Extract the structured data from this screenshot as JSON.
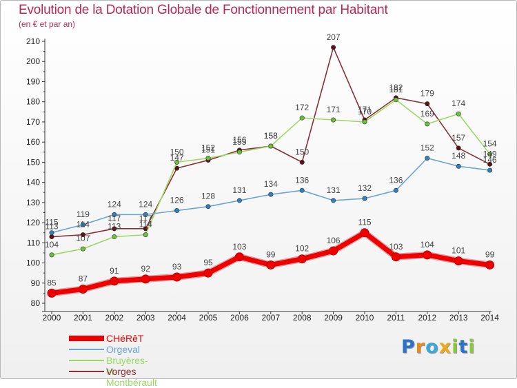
{
  "header": {
    "title": "Evolution de la Dotation Globale de Fonctionnement par Habitant",
    "subtitle": "(en € et par an)"
  },
  "logo": {
    "text": "Proxiti",
    "letters": [
      {
        "char": "P",
        "color": "#2a73c9"
      },
      {
        "char": "r",
        "color": "#e58a1c"
      },
      {
        "char": "o",
        "color": "#3aa7df"
      },
      {
        "char": "x",
        "color": "#f0a81a"
      },
      {
        "char": "i",
        "color": "#8cc63f"
      },
      {
        "char": "t",
        "color": "#2a73c9"
      },
      {
        "char": "i",
        "color": "#8cc63f"
      }
    ]
  },
  "chart_data": {
    "type": "line",
    "title": "Evolution de la Dotation Globale de Fonctionnement par Habitant",
    "subtitle": "(en € et par an)",
    "xlabel": "",
    "ylabel": "",
    "ylim": [
      80,
      210
    ],
    "ytick_step": 10,
    "grid": false,
    "legend_position": "bottom-left",
    "x": [
      "2000",
      "2001",
      "2002",
      "2003",
      "2004",
      "2005",
      "2006",
      "2007",
      "2008",
      "2009",
      "2010",
      "2011",
      "2012",
      "2013",
      "2014"
    ],
    "series": [
      {
        "name": "CHéRêT",
        "color": "#ee0000",
        "marker": "#ee0000",
        "values": [
          85,
          87,
          91,
          92,
          93,
          95,
          103,
          99,
          102,
          106,
          115,
          103,
          104,
          101,
          99
        ]
      },
      {
        "name": "Orgeval",
        "color": "#6aa5d5",
        "marker": "#2f7fc1",
        "values": [
          115,
          119,
          124,
          124,
          126,
          128,
          131,
          134,
          136,
          131,
          132,
          136,
          152,
          148,
          146
        ]
      },
      {
        "name": "Bruyères-et-Montbérault",
        "color": "#9ada62",
        "marker": "#6cc13a",
        "values": [
          104,
          107,
          113,
          114,
          150,
          152,
          155,
          158,
          172,
          171,
          170,
          181,
          169,
          174,
          154
        ]
      },
      {
        "name": "Vorges",
        "color": "#8b2f38",
        "marker": "#5c1018",
        "values": [
          113,
          114,
          117,
          117,
          147,
          151,
          156,
          158,
          150,
          207,
          171,
          182,
          179,
          157,
          149
        ]
      }
    ],
    "data_labels": [
      {
        "series": "CHéRêT",
        "labels": [
          "85",
          "87",
          "91",
          "92",
          "93",
          "95",
          "103",
          "99",
          "102",
          "106",
          "115",
          "103",
          "104",
          "101",
          "99"
        ]
      },
      {
        "series": "Orgeval",
        "labels": [
          "115",
          "119",
          "124",
          "124",
          "126",
          "128",
          "131",
          "134",
          "136",
          "131",
          "132",
          "136",
          "152",
          "148",
          "146"
        ]
      },
      {
        "series": "Bruyères-et-Montbérault",
        "labels": [
          "104",
          "107",
          "113",
          "114",
          "150",
          "152",
          "155",
          "158",
          "172",
          "171",
          "170",
          "181",
          "169",
          "174",
          "154"
        ]
      },
      {
        "series": "Vorges",
        "labels": [
          "113",
          "114",
          "117",
          "117",
          "147",
          "151",
          "156",
          "158",
          "150",
          "207",
          "171",
          "182",
          "179",
          "157",
          "149"
        ]
      }
    ]
  }
}
